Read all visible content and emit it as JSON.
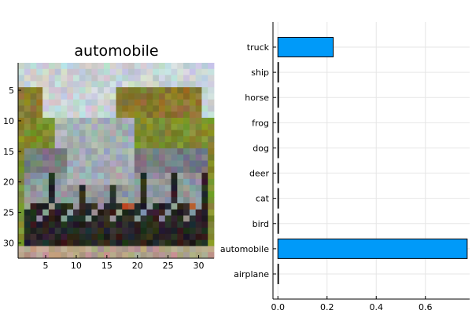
{
  "chart_data": [
    {
      "type": "heatmap",
      "title": "automobile",
      "xticks": [
        5,
        10,
        15,
        20,
        25,
        30
      ],
      "yticks": [
        5,
        10,
        15,
        20,
        25,
        30
      ],
      "xlim": [
        0.5,
        32.5
      ],
      "ylim": [
        0.5,
        32.5
      ],
      "description_colors": {
        "sky": "#c9d3d6",
        "foliage": "#8a7a30",
        "grass": "#7f8c2f",
        "car_body": "#8f979c",
        "car_dark": "#2a2624",
        "ground": "#b8a08a",
        "tail_light": "#b04e33"
      }
    },
    {
      "type": "bar",
      "orientation": "horizontal",
      "categories": [
        "airplane",
        "automobile",
        "bird",
        "cat",
        "deer",
        "dog",
        "frog",
        "horse",
        "ship",
        "truck"
      ],
      "values": [
        0.0,
        0.77,
        0.0,
        0.0,
        0.0,
        0.0,
        0.0,
        0.0,
        0.0,
        0.225
      ],
      "xticks": [
        "0.0",
        "0.2",
        "0.4",
        "0.6"
      ],
      "xlim": [
        -0.02,
        0.78
      ],
      "bar_color": "#009af9",
      "grid": true
    }
  ]
}
